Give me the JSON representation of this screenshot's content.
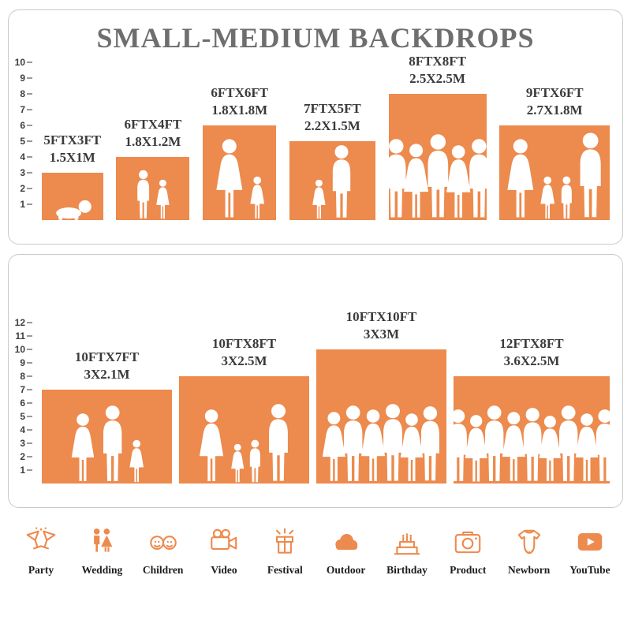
{
  "title": "SMALL-MEDIUM BACKDROPS",
  "accent_color": "#ED8A4D",
  "top_panel": {
    "ruler": [
      1,
      2,
      3,
      4,
      5,
      6,
      7,
      8,
      9,
      10
    ],
    "backdrops": [
      {
        "ft": "5FTX3FT",
        "m": "1.5X1M",
        "w": 5,
        "h": 3,
        "figures": [
          {
            "type": "baby",
            "h": 1.3
          }
        ]
      },
      {
        "ft": "6FTX4FT",
        "m": "1.8X1.2M",
        "w": 6,
        "h": 4,
        "figures": [
          {
            "type": "m",
            "h": 3.2
          },
          {
            "type": "f",
            "h": 2.6
          }
        ]
      },
      {
        "ft": "6FTX6FT",
        "m": "1.8X1.8M",
        "w": 6,
        "h": 6,
        "figures": [
          {
            "type": "f",
            "h": 5.2
          },
          {
            "type": "f",
            "h": 2.8
          }
        ]
      },
      {
        "ft": "7FTX5FT",
        "m": "2.2X1.5M",
        "w": 7,
        "h": 5,
        "figures": [
          {
            "type": "f",
            "h": 2.6
          },
          {
            "type": "m",
            "h": 4.8
          }
        ]
      },
      {
        "ft": "8FTX8FT",
        "m": "2.5X2.5M",
        "w": 8,
        "h": 8,
        "figures": [
          {
            "type": "m",
            "h": 5.2
          },
          {
            "type": "f",
            "h": 4.9
          },
          {
            "type": "m",
            "h": 5.5
          },
          {
            "type": "f",
            "h": 4.8
          },
          {
            "type": "m",
            "h": 5.2
          }
        ]
      },
      {
        "ft": "9FTX6FT",
        "m": "2.7X1.8M",
        "w": 9,
        "h": 6,
        "figures": [
          {
            "type": "f",
            "h": 5.2
          },
          {
            "type": "f",
            "h": 2.8
          },
          {
            "type": "m",
            "h": 2.8
          },
          {
            "type": "m",
            "h": 5.6
          }
        ]
      }
    ]
  },
  "bottom_panel": {
    "ruler": [
      1,
      2,
      3,
      4,
      5,
      6,
      7,
      8,
      9,
      10,
      11,
      12
    ],
    "backdrops": [
      {
        "ft": "10FTX7FT",
        "m": "3X2.1M",
        "w": 10,
        "h": 7,
        "figures": [
          {
            "type": "f",
            "h": 5.3
          },
          {
            "type": "m",
            "h": 5.9
          },
          {
            "type": "f",
            "h": 3.3
          }
        ]
      },
      {
        "ft": "10FTX8FT",
        "m": "3X2.5M",
        "w": 10,
        "h": 8,
        "figures": [
          {
            "type": "f",
            "h": 5.6
          },
          {
            "type": "f",
            "h": 3.0
          },
          {
            "type": "m",
            "h": 3.3
          },
          {
            "type": "m",
            "h": 6.0
          }
        ]
      },
      {
        "ft": "10FTX10FT",
        "m": "3X3M",
        "w": 10,
        "h": 10,
        "figures": [
          {
            "type": "f",
            "h": 5.4
          },
          {
            "type": "m",
            "h": 5.9
          },
          {
            "type": "f",
            "h": 5.6
          },
          {
            "type": "m",
            "h": 6.0
          },
          {
            "type": "f",
            "h": 5.3
          },
          {
            "type": "m",
            "h": 5.8
          }
        ]
      },
      {
        "ft": "12FTX8FT",
        "m": "3.6X2.5M",
        "w": 12,
        "h": 8,
        "figures": [
          {
            "type": "m",
            "h": 5.6
          },
          {
            "type": "f",
            "h": 5.2
          },
          {
            "type": "m",
            "h": 5.9
          },
          {
            "type": "f",
            "h": 5.4
          },
          {
            "type": "m",
            "h": 5.7
          },
          {
            "type": "f",
            "h": 5.1
          },
          {
            "type": "m",
            "h": 5.9
          },
          {
            "type": "f",
            "h": 5.3
          },
          {
            "type": "m",
            "h": 5.6
          }
        ]
      }
    ]
  },
  "categories": [
    {
      "label": "Party",
      "icon": "party-icon"
    },
    {
      "label": "Wedding",
      "icon": "wedding-icon"
    },
    {
      "label": "Children",
      "icon": "children-icon"
    },
    {
      "label": "Video",
      "icon": "video-icon"
    },
    {
      "label": "Festival",
      "icon": "festival-icon"
    },
    {
      "label": "Outdoor",
      "icon": "outdoor-icon"
    },
    {
      "label": "Birthday",
      "icon": "birthday-icon"
    },
    {
      "label": "Product",
      "icon": "product-icon"
    },
    {
      "label": "Newborn",
      "icon": "newborn-icon"
    },
    {
      "label": "YouTube",
      "icon": "youtube-icon"
    }
  ]
}
